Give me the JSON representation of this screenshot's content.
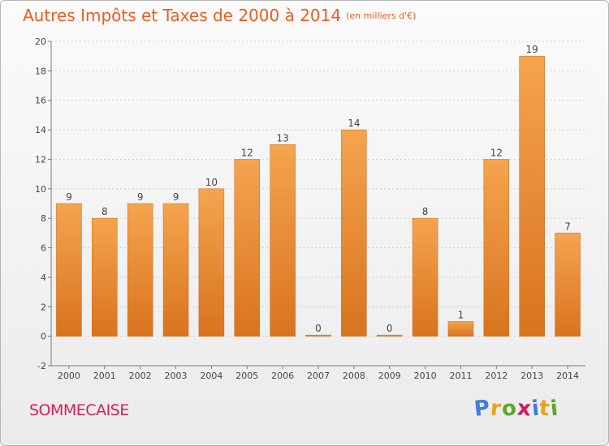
{
  "header": {
    "title": "Autres Impôts et Taxes de 2000 à 2014",
    "unit": "(en milliers d'€)"
  },
  "footer": {
    "commune": "SOMMECAISE",
    "brand_letters": [
      {
        "ch": "P",
        "color": "#3d7fd6"
      },
      {
        "ch": "r",
        "color": "#e8a219"
      },
      {
        "ch": "o",
        "color": "#5aa82a"
      },
      {
        "ch": "x",
        "color": "#d3195d"
      },
      {
        "ch": "i",
        "color": "#3d7fd6"
      },
      {
        "ch": "t",
        "color": "#e8a219"
      },
      {
        "ch": "i",
        "color": "#5aa82a"
      }
    ]
  },
  "colors": {
    "title": "#ee5c1e",
    "commune": "#e0195b",
    "bar_light": "#f5a44f",
    "bar_dark": "#d9731e",
    "grid": "#d0d0d0",
    "axis": "#7a7a7a"
  },
  "chart_data": {
    "type": "bar",
    "title": "Autres Impôts et Taxes de 2000 à 2014",
    "subtitle": "(en milliers d'€)",
    "categories": [
      "2000",
      "2001",
      "2002",
      "2003",
      "2004",
      "2005",
      "2006",
      "2007",
      "2008",
      "2009",
      "2010",
      "2011",
      "2012",
      "2013",
      "2014"
    ],
    "values": [
      9,
      8,
      9,
      9,
      10,
      12,
      13,
      0,
      14,
      0,
      8,
      1,
      12,
      19,
      7
    ],
    "data_labels": [
      "9",
      "8",
      "9",
      "9",
      "10",
      "12",
      "13",
      "0",
      "14",
      "0",
      "8",
      "1",
      "12",
      "19",
      "7"
    ],
    "ylim": [
      -2,
      20
    ],
    "yticks": [
      -2,
      0,
      2,
      4,
      6,
      8,
      10,
      12,
      14,
      16,
      18,
      20
    ],
    "grid": "horizontal dashed",
    "legend": "none"
  }
}
